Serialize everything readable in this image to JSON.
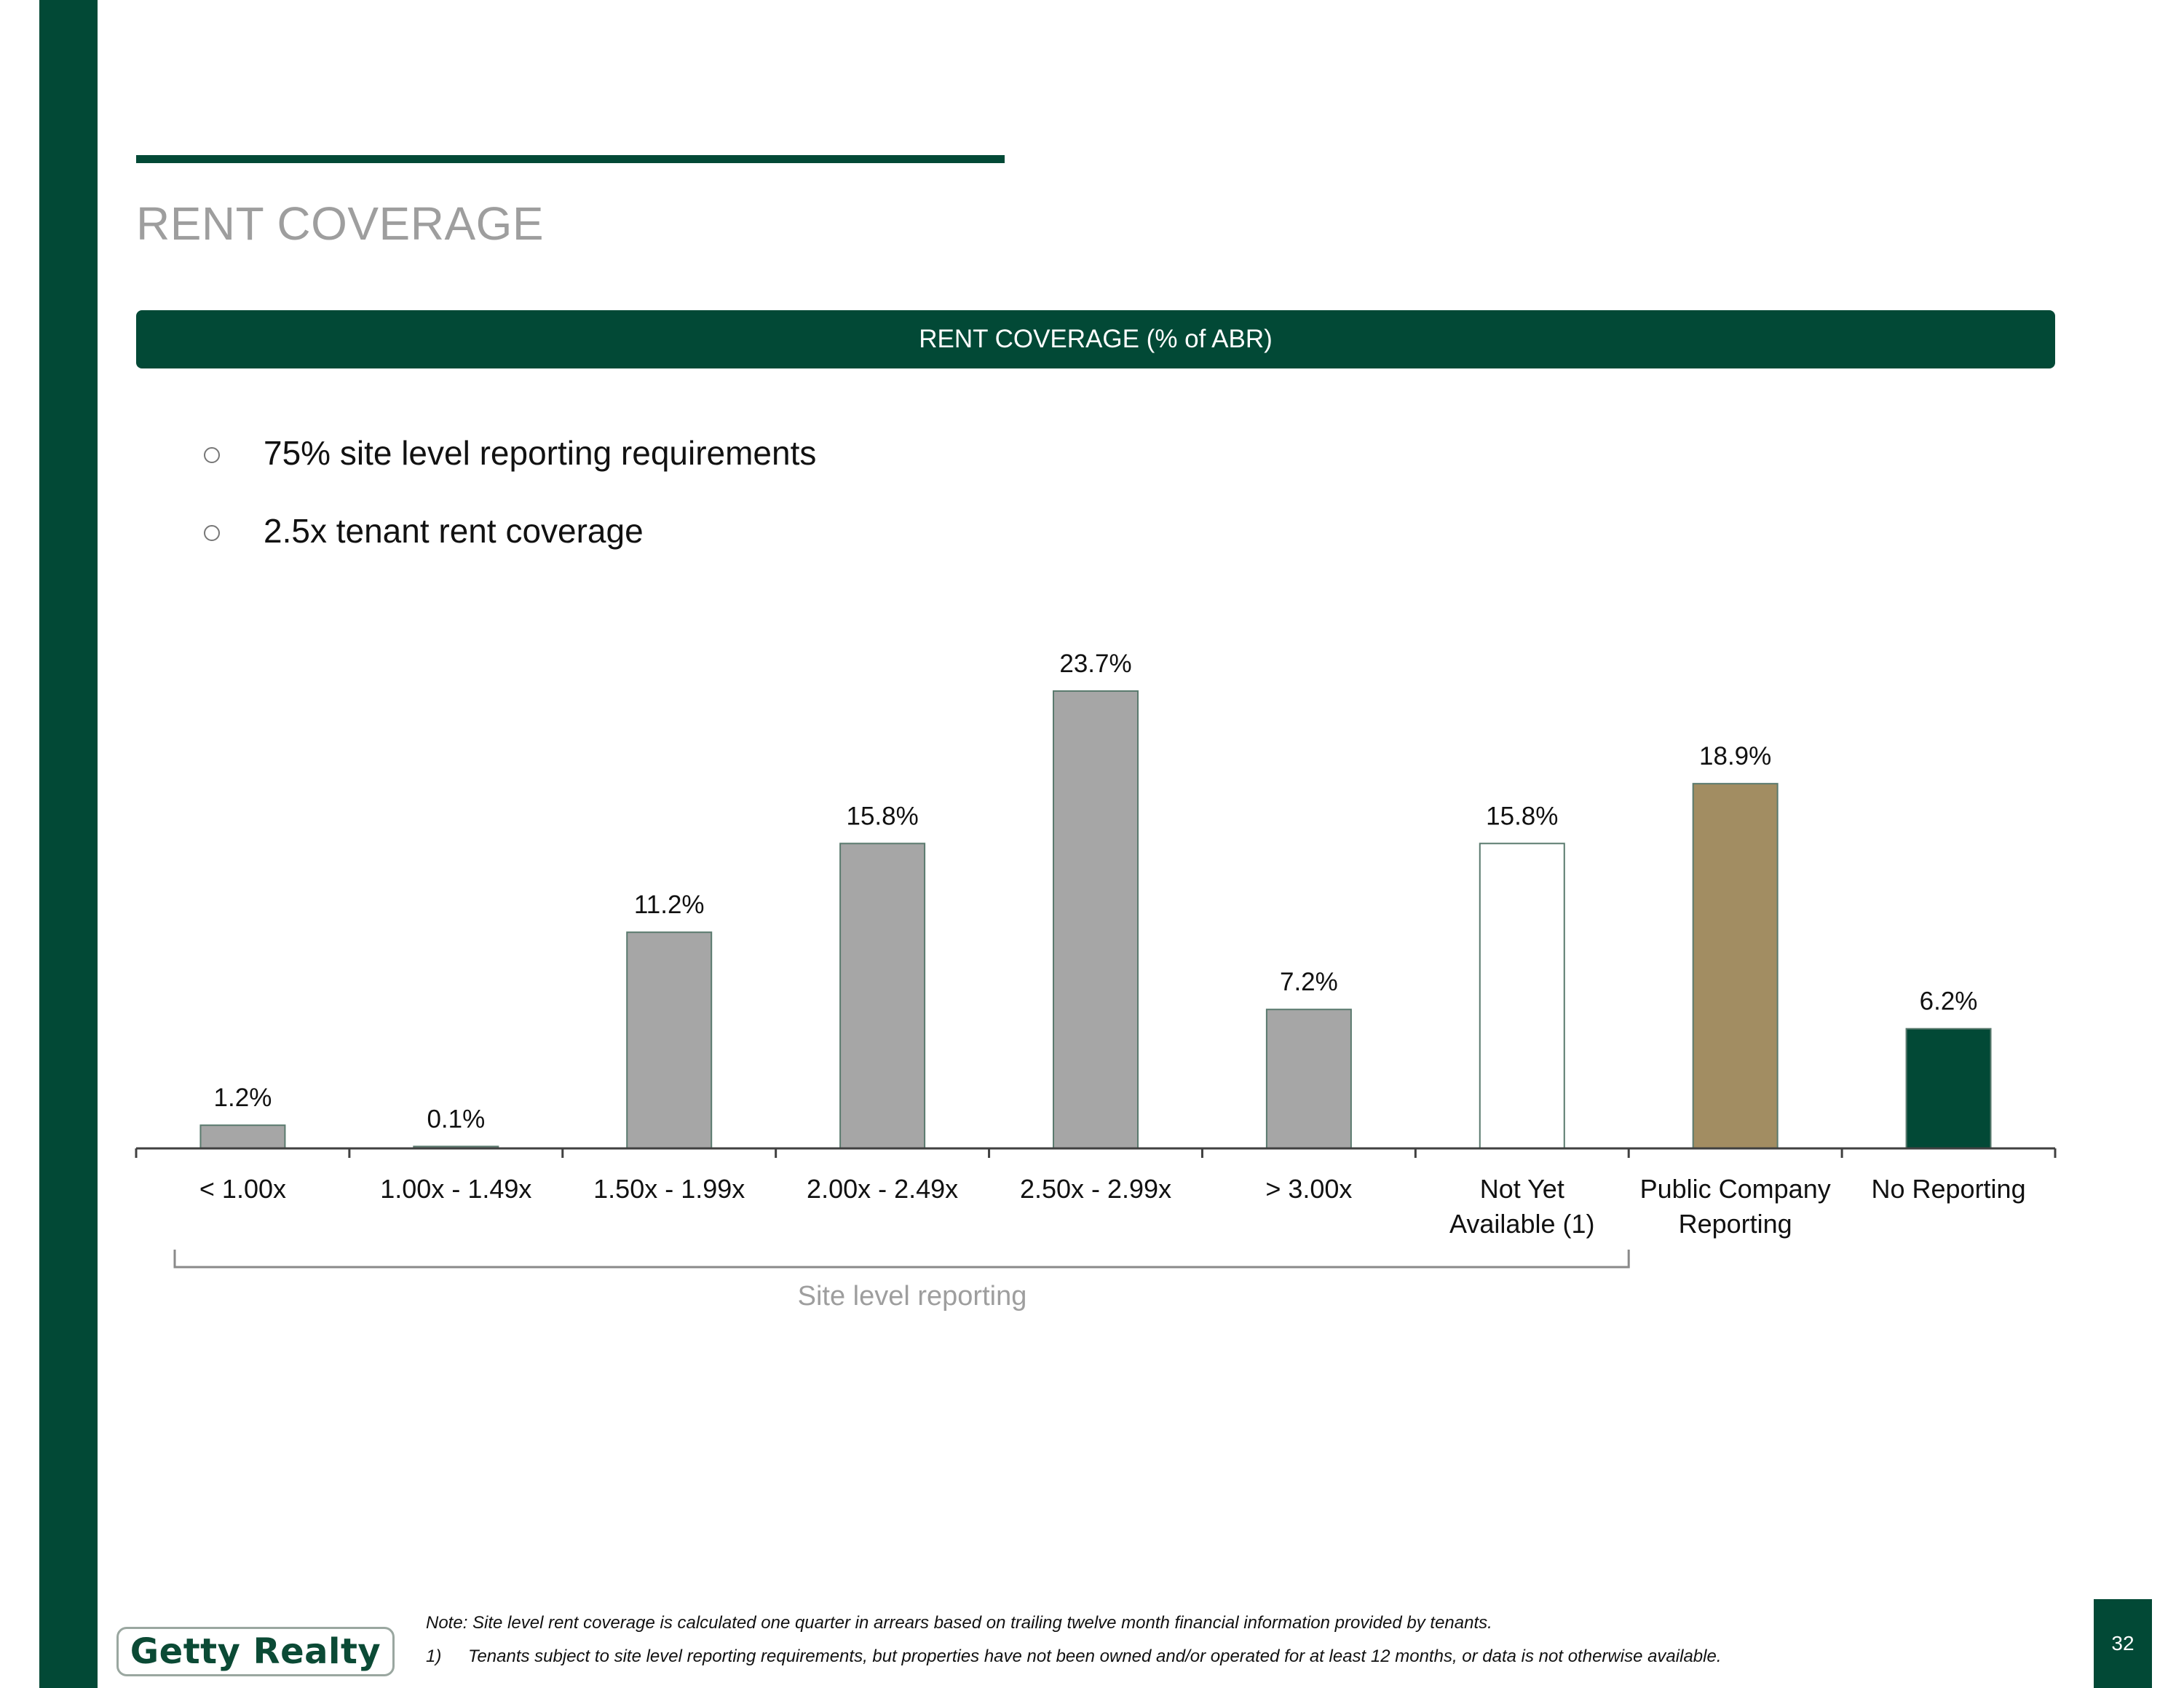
{
  "page": {
    "title": "RENT COVERAGE",
    "banner": "RENT COVERAGE (% of ABR)",
    "page_number": "32"
  },
  "bullets": [
    {
      "text": "75% site level reporting requirements"
    },
    {
      "text": "2.5x tenant rent coverage"
    }
  ],
  "chart_data": {
    "type": "bar",
    "title": "",
    "xlabel": "",
    "ylabel": "",
    "grid": false,
    "categories": [
      [
        "< 1.00x"
      ],
      [
        "1.00x - 1.49x"
      ],
      [
        "1.50x - 1.99x"
      ],
      [
        "2.00x - 2.49x"
      ],
      [
        "2.50x - 2.99x"
      ],
      [
        "> 3.00x"
      ],
      [
        "Not Yet",
        "Available (1)"
      ],
      [
        "Public Company",
        "Reporting"
      ],
      [
        "No Reporting"
      ]
    ],
    "values": [
      1.2,
      0.1,
      11.2,
      15.8,
      23.7,
      7.2,
      15.8,
      18.9,
      6.2
    ],
    "value_labels": [
      "1.2%",
      "0.1%",
      "11.2%",
      "15.8%",
      "23.7%",
      "7.2%",
      "15.8%",
      "18.9%",
      "6.2%"
    ],
    "bar_colors": [
      "#a6a6a6",
      "#a6a6a6",
      "#a6a6a6",
      "#a6a6a6",
      "#a6a6a6",
      "#a6a6a6",
      "#ffffff",
      "#a28d62",
      "#024936"
    ],
    "bar_outline": "#5a7a6e",
    "bracket": {
      "label": "Site level reporting",
      "from_index": 0,
      "to_index": 6
    }
  },
  "footnotes": [
    {
      "num": "",
      "text": "Note: Site level rent coverage is calculated one quarter in arrears based on trailing twelve month financial information provided by tenants."
    },
    {
      "num": "1)",
      "text": "Tenants subject to site level reporting requirements, but properties have not been owned and/or operated for at least 12 months, or data is not otherwise available."
    }
  ],
  "logo": {
    "text": "Getty Realty"
  },
  "colors": {
    "brand_green": "#024936",
    "title_gray": "#9e9e9e",
    "bar_gray": "#a6a6a6",
    "bar_gold": "#a28d62"
  }
}
